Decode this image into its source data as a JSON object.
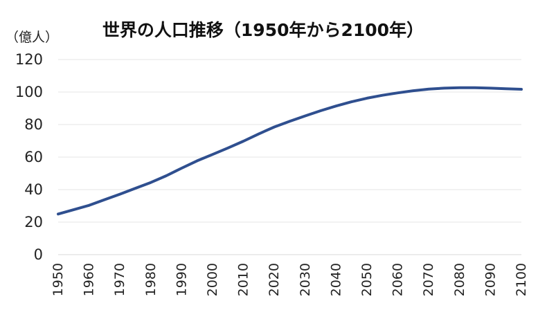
{
  "chart_data": {
    "type": "line",
    "title": "世界の人口推移（1950年から2100年）",
    "ylabel": "（億人）",
    "xlabel": "",
    "ylim": [
      0,
      120
    ],
    "yticks": [
      0,
      20,
      40,
      60,
      80,
      100,
      120
    ],
    "xticks": [
      1950,
      1960,
      1970,
      1980,
      1990,
      2000,
      2010,
      2020,
      2030,
      2040,
      2050,
      2060,
      2070,
      2080,
      2090,
      2100
    ],
    "grid": true,
    "legend": "none",
    "line_color": "#2f4f8f",
    "x": [
      1950,
      1955,
      1960,
      1965,
      1970,
      1975,
      1980,
      1985,
      1990,
      1995,
      2000,
      2005,
      2010,
      2015,
      2020,
      2025,
      2030,
      2035,
      2040,
      2045,
      2050,
      2055,
      2060,
      2065,
      2070,
      2075,
      2080,
      2085,
      2090,
      2095,
      2100
    ],
    "series": [
      {
        "values": [
          25.0,
          27.6,
          30.3,
          33.8,
          37.2,
          40.8,
          44.4,
          48.5,
          53.2,
          57.7,
          61.6,
          65.6,
          69.8,
          74.3,
          78.5,
          82.0,
          85.3,
          88.5,
          91.4,
          94.0,
          96.2,
          98.0,
          99.5,
          100.8,
          101.8,
          102.4,
          102.7,
          102.7,
          102.4,
          102.0,
          101.7
        ]
      }
    ]
  }
}
